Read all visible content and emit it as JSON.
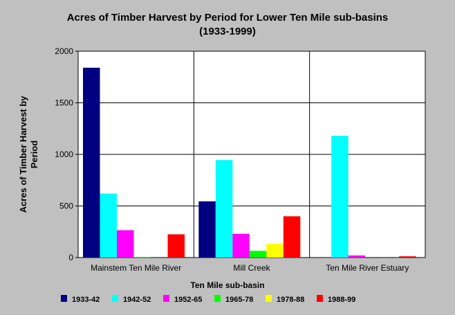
{
  "chart_data": {
    "type": "bar",
    "title": "Acres of Timber Harvest by Period for Lower Ten Mile sub-basins",
    "subtitle": "(1933-1999)",
    "xlabel": "Ten Mile sub-basin",
    "ylabel": "Acres of Timber Harvest by Period",
    "ylim": [
      0,
      2000
    ],
    "yticks": [
      0,
      500,
      1000,
      1500,
      2000
    ],
    "grid": true,
    "legend_position": "bottom",
    "categories": [
      "Mainstem Ten Mile River",
      "Mill Creek",
      "Ten Mile River Estuary"
    ],
    "series": [
      {
        "name": "1933-42",
        "color": "#000080",
        "values": [
          1840,
          545,
          0
        ]
      },
      {
        "name": "1942-52",
        "color": "#00ffff",
        "values": [
          620,
          945,
          1180
        ]
      },
      {
        "name": "1952-65",
        "color": "#ff00ff",
        "values": [
          265,
          230,
          20
        ]
      },
      {
        "name": "1965-78",
        "color": "#00ff00",
        "values": [
          5,
          65,
          0
        ]
      },
      {
        "name": "1978-88",
        "color": "#ffff00",
        "values": [
          0,
          135,
          0
        ]
      },
      {
        "name": "1988-99",
        "color": "#ff0000",
        "values": [
          225,
          400,
          12
        ]
      }
    ]
  }
}
